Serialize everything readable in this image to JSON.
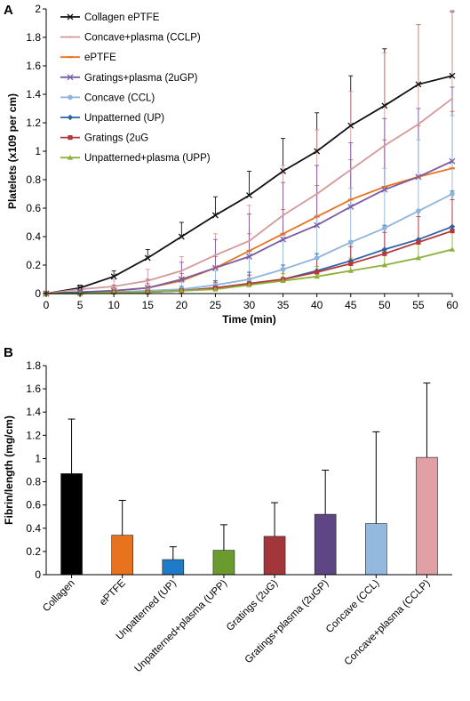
{
  "chart_data": [
    {
      "panel": "A",
      "type": "line",
      "title": "",
      "xlabel": "Time (min)",
      "ylabel": "Platelets (x109 per cm)",
      "xlim": [
        0,
        60
      ],
      "ylim": [
        0,
        2
      ],
      "x_ticks": [
        "0",
        "5",
        "10",
        "15",
        "20",
        "25",
        "30",
        "35",
        "40",
        "45",
        "50",
        "55",
        "60"
      ],
      "y_ticks": [
        "0",
        "0.2",
        "0.4",
        "0.6",
        "0.8",
        "1",
        "1.2",
        "1.4",
        "1.6",
        "1.8",
        "2"
      ],
      "grid": false,
      "legend_position": "top-left",
      "x": [
        0,
        5,
        10,
        15,
        20,
        25,
        30,
        35,
        40,
        45,
        50,
        55,
        60
      ],
      "series": [
        {
          "name": "Collagen ePTFE",
          "color": "#111111",
          "marker": "x",
          "values": [
            0,
            0.04,
            0.12,
            0.25,
            0.4,
            0.55,
            0.69,
            0.86,
            1.0,
            1.18,
            1.32,
            1.47,
            1.53
          ],
          "err": [
            0,
            0.02,
            0.04,
            0.06,
            0.1,
            0.13,
            0.17,
            0.23,
            0.27,
            0.35,
            0.4,
            0.42,
            0.45
          ]
        },
        {
          "name": "Concave+plasma (CCLP)",
          "color": "#d4999a",
          "marker": "line",
          "values": [
            0,
            0.03,
            0.05,
            0.09,
            0.16,
            0.27,
            0.37,
            0.55,
            0.7,
            0.87,
            1.04,
            1.19,
            1.37
          ],
          "err": [
            0,
            0.02,
            0.05,
            0.08,
            0.1,
            0.15,
            0.25,
            0.35,
            0.45,
            0.55,
            0.65,
            0.7,
            0.62
          ]
        },
        {
          "name": "ePTFE",
          "color": "#e8731f",
          "marker": "dash",
          "values": [
            0,
            0.01,
            0.02,
            0.04,
            0.09,
            0.18,
            0.3,
            0.42,
            0.54,
            0.66,
            0.75,
            0.82,
            0.88
          ],
          "err": [
            0,
            0.01,
            0.02,
            0.03,
            0.05,
            0.08,
            0.12,
            0.17,
            0.22,
            0.28,
            0.33,
            0.36,
            0.4
          ]
        },
        {
          "name": "Gratings+plasma (2uGP)",
          "color": "#7b5aa6",
          "marker": "x",
          "values": [
            0,
            0.01,
            0.02,
            0.04,
            0.1,
            0.18,
            0.26,
            0.38,
            0.48,
            0.61,
            0.73,
            0.82,
            0.93
          ],
          "err": [
            0,
            0.02,
            0.04,
            0.06,
            0.12,
            0.2,
            0.3,
            0.4,
            0.42,
            0.45,
            0.5,
            0.48,
            0.52
          ]
        },
        {
          "name": "Concave (CCL)",
          "color": "#8fb4dc",
          "marker": "circle",
          "values": [
            0,
            0.01,
            0.01,
            0.02,
            0.03,
            0.06,
            0.1,
            0.17,
            0.25,
            0.36,
            0.46,
            0.58,
            0.7
          ],
          "err": [
            0,
            0.01,
            0.02,
            0.03,
            0.05,
            0.1,
            0.18,
            0.24,
            0.3,
            0.38,
            0.42,
            0.5,
            0.55
          ]
        },
        {
          "name": "Unpatterned (UP)",
          "color": "#2e63a8",
          "marker": "diamond",
          "values": [
            0,
            0.01,
            0.01,
            0.01,
            0.02,
            0.04,
            0.07,
            0.1,
            0.16,
            0.23,
            0.31,
            0.38,
            0.47
          ],
          "err": [
            0,
            0.01,
            0.01,
            0.02,
            0.03,
            0.05,
            0.08,
            0.1,
            0.12,
            0.14,
            0.17,
            0.2,
            0.25
          ]
        },
        {
          "name": "Gratings (2uG",
          "color": "#b43a3a",
          "marker": "square",
          "values": [
            0,
            0.0,
            0.01,
            0.01,
            0.02,
            0.04,
            0.07,
            0.1,
            0.15,
            0.21,
            0.28,
            0.36,
            0.44
          ],
          "err": [
            0,
            0.01,
            0.01,
            0.02,
            0.02,
            0.04,
            0.06,
            0.08,
            0.1,
            0.12,
            0.15,
            0.18,
            0.22
          ]
        },
        {
          "name": "Unpatterned+plasma (UPP)",
          "color": "#8db13b",
          "marker": "triangle",
          "values": [
            0,
            0.0,
            0.01,
            0.01,
            0.02,
            0.03,
            0.06,
            0.09,
            0.12,
            0.16,
            0.2,
            0.25,
            0.31
          ],
          "err": [
            0,
            0.01,
            0.01,
            0.01,
            0.02,
            0.03,
            0.04,
            0.05,
            0.07,
            0.09,
            0.11,
            0.13,
            0.16
          ]
        }
      ]
    },
    {
      "panel": "B",
      "type": "bar",
      "title": "",
      "xlabel": "",
      "ylabel": "Fibrin/length (mg/cm)",
      "ylim": [
        0,
        1.8
      ],
      "y_ticks": [
        "0",
        "0.2",
        "0.4",
        "0.6",
        "0.8",
        "1",
        "1.2",
        "1.4",
        "1.6",
        "1.8"
      ],
      "grid": false,
      "categories": [
        "Collagen",
        "ePTFE",
        "Unpatterned (UP)",
        "Unpatterned+plasma (UPP)",
        "Gratings (2uG)",
        "Gratings+plasma (2uGP)",
        "Concave (CCL)",
        "Concave+plasma (CCLP)"
      ],
      "values": [
        0.87,
        0.34,
        0.13,
        0.21,
        0.33,
        0.52,
        0.44,
        1.01
      ],
      "err": [
        0.47,
        0.3,
        0.11,
        0.22,
        0.29,
        0.38,
        0.79,
        0.64
      ],
      "colors": [
        "#000000",
        "#e8731f",
        "#1f7ac7",
        "#6b9a2e",
        "#a3363a",
        "#5e4583",
        "#93b9df",
        "#e1a0a3"
      ]
    }
  ]
}
